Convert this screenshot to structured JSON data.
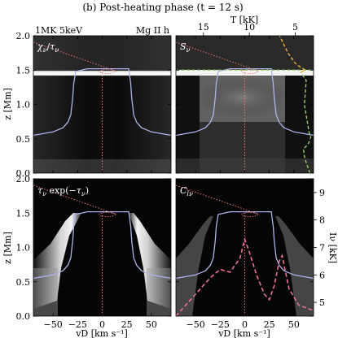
{
  "figure": {
    "title": "(b) Post-heating phase (t = 12 s)",
    "top_left_label": "1MK 5keV",
    "top_right_label": "Mg II h"
  },
  "panels": [
    {
      "id": "chi-over-tau",
      "label": "χν/τν"
    },
    {
      "id": "source-function",
      "label": "Sν"
    },
    {
      "id": "tau-exp",
      "label": "τν exp(−τν)"
    },
    {
      "id": "contribution-function",
      "label": "Cl ν"
    }
  ],
  "axes": {
    "z_label": "z [Mm]",
    "z_ticks": [
      "0.0",
      "0.5",
      "1.0",
      "1.5",
      "2.0"
    ],
    "vd_label": "vD [km s⁻¹]",
    "vd_ticks": [
      "−50",
      "−25",
      "0",
      "25",
      "50"
    ],
    "T_label": "T [kK]",
    "T_ticks": [
      "15",
      "10",
      "5"
    ],
    "I_label": "Iν [kK]",
    "I_ticks": [
      "5",
      "6",
      "7",
      "8",
      "9"
    ]
  },
  "chart_data": {
    "type": "line",
    "xlabel": "vD [km s⁻¹]",
    "ylabel": "z [Mm]",
    "xlim": [
      -70,
      70
    ],
    "ylim": [
      0,
      2.0
    ],
    "series": [
      {
        "name": "tau-unity height",
        "x": [
          -70,
          -50,
          -40,
          -35,
          -32,
          -30,
          -29,
          -27,
          -15,
          0,
          15,
          27,
          29,
          30,
          32,
          35,
          40,
          50,
          70
        ],
        "y": [
          0.55,
          0.6,
          0.66,
          0.74,
          0.85,
          1.1,
          1.3,
          1.48,
          1.52,
          1.52,
          1.52,
          1.52,
          1.3,
          1.1,
          0.85,
          0.74,
          0.66,
          0.6,
          0.55
        ]
      },
      {
        "name": "temperature T [kK]",
        "x": [
          3.4,
          3.6,
          3.8,
          4.0,
          4.1,
          3.6,
          3.4,
          3.3,
          3.5,
          4.0,
          3.8,
          4.4,
          3.9,
          4.4,
          5.0,
          5.8,
          6.7
        ],
        "y": [
          0.0,
          0.08,
          0.15,
          0.25,
          0.35,
          0.42,
          0.48,
          0.52,
          0.6,
          1.0,
          1.35,
          1.47,
          1.5,
          1.54,
          1.6,
          1.75,
          2.0
        ]
      },
      {
        "name": "emergent intensity I [kK]",
        "x": [
          -70,
          -55,
          -35,
          -25,
          -15,
          -5,
          0,
          5,
          12,
          20,
          25,
          30,
          35,
          38,
          45,
          55,
          70
        ],
        "y": [
          4.5,
          5.1,
          5.9,
          6.2,
          6.1,
          6.6,
          7.3,
          6.8,
          6.0,
          5.3,
          5.1,
          5.6,
          6.5,
          6.7,
          5.5,
          4.9,
          4.7
        ]
      }
    ],
    "T_axis": {
      "label": "T [kK]",
      "lim": [
        18,
        3
      ],
      "ticks": [
        15,
        10,
        5
      ]
    },
    "I_axis": {
      "label": "Iν [kK]",
      "lim": [
        4.5,
        9.5
      ],
      "ticks": [
        5,
        6,
        7,
        8,
        9
      ]
    }
  }
}
